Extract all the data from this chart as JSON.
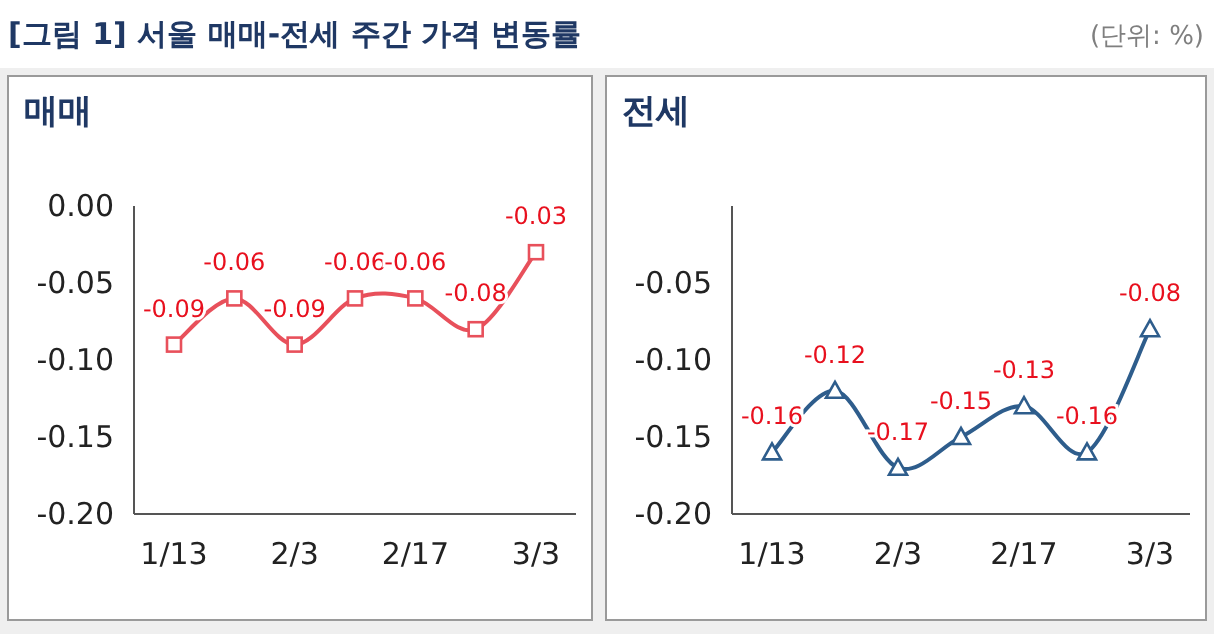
{
  "chart_data": [
    {
      "type": "line",
      "title": "매매",
      "annotations": [
        "[그림 1] 서울 매매-전세 주간 가격 변동률",
        "(단위: %)"
      ],
      "categories": [
        "1/13",
        null,
        "2/3",
        null,
        "2/17",
        null,
        "3/3"
      ],
      "series": [
        {
          "color": "#e8505b",
          "values": [
            -0.09,
            -0.06,
            -0.09,
            -0.06,
            -0.06,
            -0.08,
            -0.03
          ],
          "marker": "square"
        }
      ],
      "ylim": [
        -0.2,
        0
      ],
      "yticks": [
        {
          "value": 0,
          "label": "0.00"
        },
        {
          "value": -0.05,
          "label": "-0.05"
        },
        {
          "value": -0.1,
          "label": "-0.10"
        },
        {
          "value": -0.15,
          "label": "-0.15"
        },
        {
          "value": -0.2,
          "label": "-0.20"
        }
      ],
      "data_labels": true
    },
    {
      "type": "line",
      "title": "전세",
      "categories": [
        "1/13",
        null,
        "2/3",
        null,
        "2/17",
        null,
        "3/3"
      ],
      "series": [
        {
          "color": "#2e5d8c",
          "values": [
            -0.16,
            -0.12,
            -0.17,
            -0.15,
            -0.13,
            -0.16,
            -0.08
          ],
          "marker": "triangle"
        }
      ],
      "ylim": [
        -0.2,
        0
      ],
      "yticks": [
        {
          "value": -0.05,
          "label": "-0.05"
        },
        {
          "value": -0.1,
          "label": "-0.10"
        },
        {
          "value": -0.15,
          "label": "-0.15"
        },
        {
          "value": -0.2,
          "label": "-0.20"
        }
      ],
      "data_labels": true
    }
  ]
}
